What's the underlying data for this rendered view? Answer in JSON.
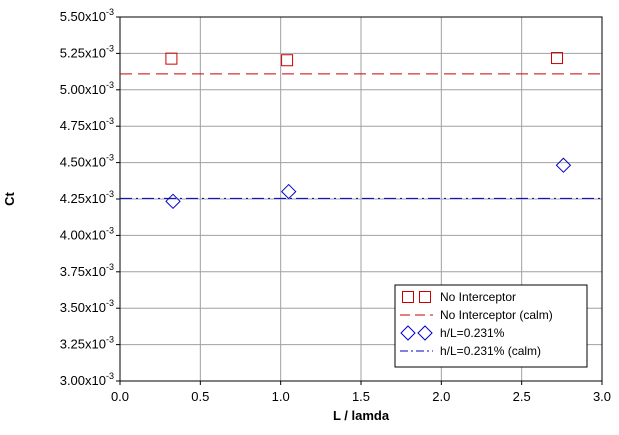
{
  "chart_data": {
    "type": "scatter",
    "xlabel": "L / lamda",
    "ylabel": "Ct",
    "xlim": [
      0.0,
      3.0
    ],
    "ylim": [
      0.003,
      0.0055
    ],
    "x_ticks": [
      0.0,
      0.5,
      1.0,
      1.5,
      2.0,
      2.5,
      3.0
    ],
    "x_tick_labels": [
      "0.0",
      "0.5",
      "1.0",
      "1.5",
      "2.0",
      "2.5",
      "3.0"
    ],
    "y_ticks": [
      0.003,
      0.00325,
      0.0035,
      0.00375,
      0.004,
      0.00425,
      0.0045,
      0.00475,
      0.005,
      0.00525,
      0.0055
    ],
    "y_tick_labels": [
      {
        "mantissa": "3.00x10",
        "exp": "-3"
      },
      {
        "mantissa": "3.25x10",
        "exp": "-3"
      },
      {
        "mantissa": "3.50x10",
        "exp": "-3"
      },
      {
        "mantissa": "3.75x10",
        "exp": "-3"
      },
      {
        "mantissa": "4.00x10",
        "exp": "-3"
      },
      {
        "mantissa": "4.25x10",
        "exp": "-3"
      },
      {
        "mantissa": "4.50x10",
        "exp": "-3"
      },
      {
        "mantissa": "4.75x10",
        "exp": "-3"
      },
      {
        "mantissa": "5.00x10",
        "exp": "-3"
      },
      {
        "mantissa": "5.25x10",
        "exp": "-3"
      },
      {
        "mantissa": "5.50x10",
        "exp": "-3"
      }
    ],
    "grid": true,
    "legend_position": "bottom-right",
    "series": [
      {
        "name": "No Interceptor",
        "kind": "scatter",
        "marker": "square",
        "color": "#cc0000",
        "x": [
          0.32,
          1.04,
          2.72
        ],
        "y": [
          0.005214,
          0.005203,
          0.005218
        ]
      },
      {
        "name": "No Interceptor (calm)",
        "kind": "hline",
        "dash": "dash",
        "color": "#cc0000",
        "y": 0.005109
      },
      {
        "name": "h/L=0.231%",
        "kind": "scatter",
        "marker": "diamond",
        "color": "#0000cc",
        "x": [
          0.33,
          1.05,
          2.76
        ],
        "y": [
          0.004234,
          0.004301,
          0.004482
        ]
      },
      {
        "name": "h/L=0.231% (calm)",
        "kind": "hline",
        "dash": "dashdot",
        "color": "#0000cc",
        "y": 0.004254
      }
    ]
  }
}
